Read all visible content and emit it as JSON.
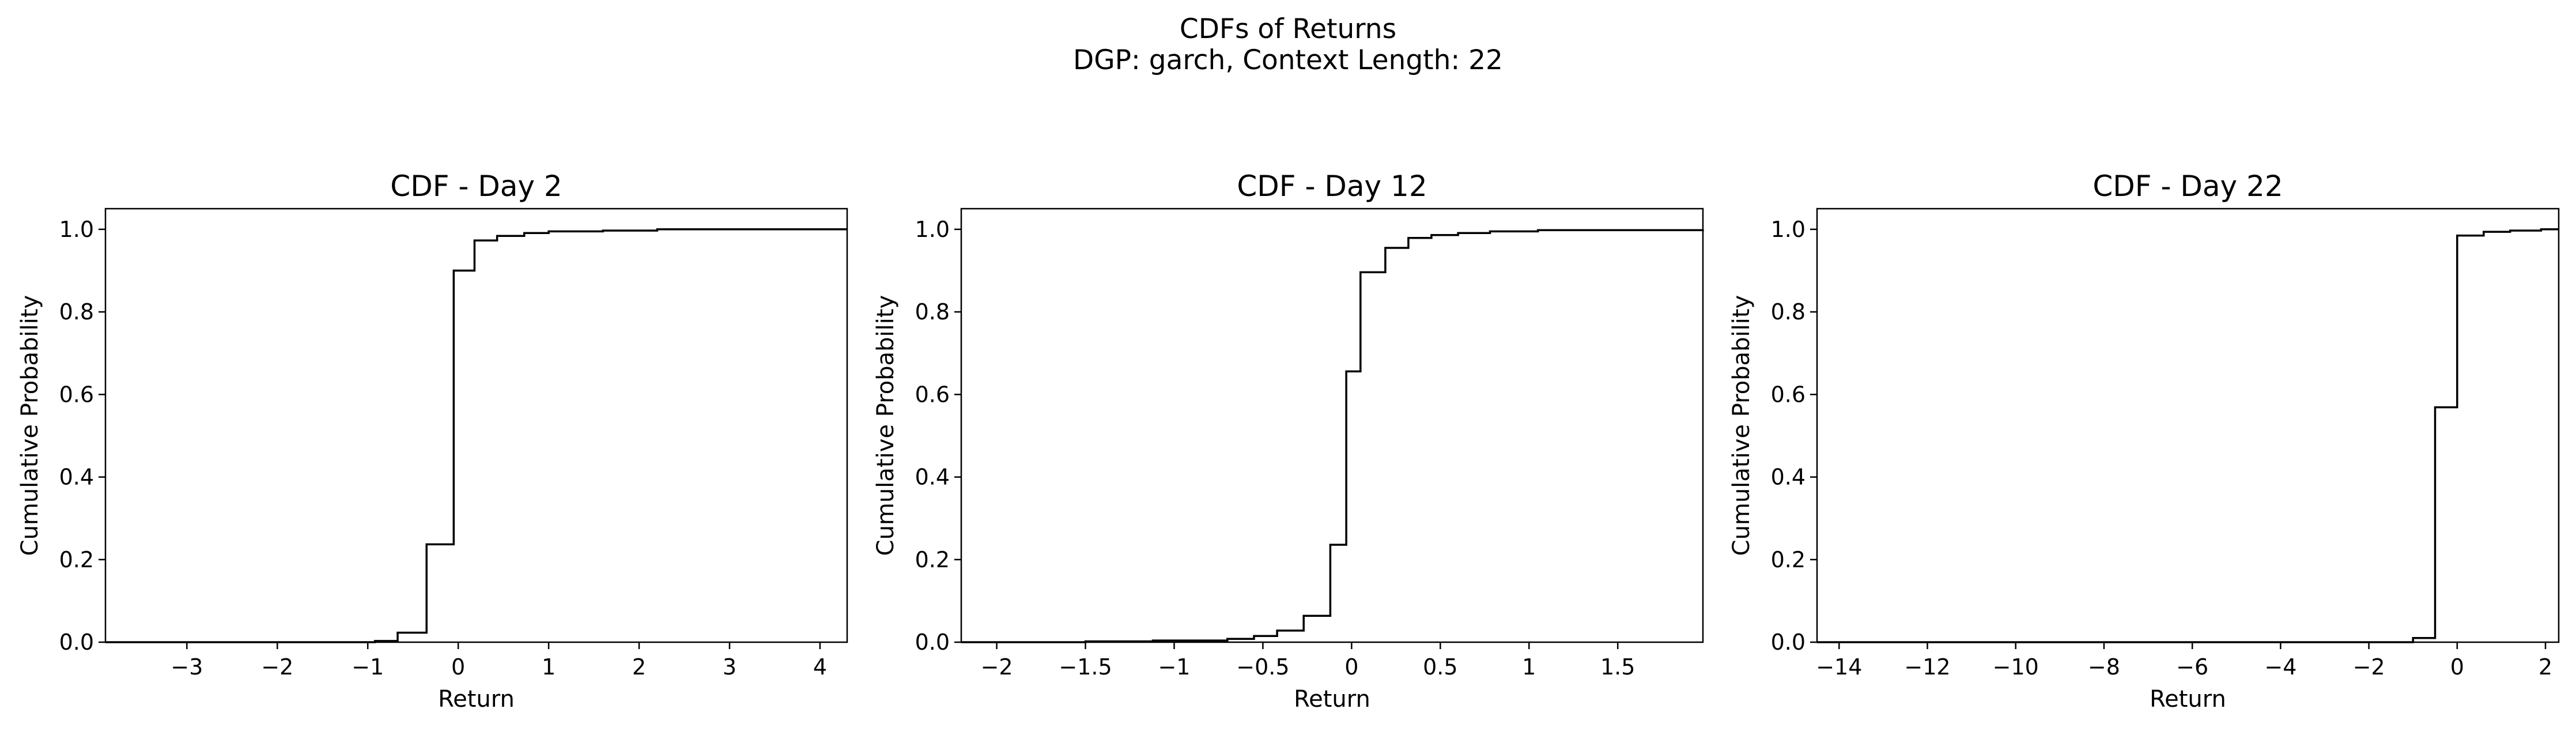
{
  "figure": {
    "title_line1": "CDFs of Returns",
    "title_line2": "DGP: garch, Context Length: 22"
  },
  "chart_data": [
    {
      "type": "line",
      "drawstyle": "steps-post",
      "title": "CDF - Day 2",
      "xlabel": "Return",
      "ylabel": "Cumulative Probability",
      "xlim": [
        -3.9,
        4.3
      ],
      "ylim": [
        0.0,
        1.05
      ],
      "xticks": [
        -3,
        -2,
        -1,
        0,
        1,
        2,
        3,
        4
      ],
      "yticks": [
        0.0,
        0.2,
        0.4,
        0.6,
        0.8,
        1.0
      ],
      "grid": false,
      "color": "#000000",
      "x": [
        -3.9,
        -0.92,
        -0.67,
        -0.35,
        -0.05,
        0.18,
        0.43,
        0.73,
        1.0,
        1.6,
        2.2,
        4.3
      ],
      "y": [
        0.0,
        0.003,
        0.023,
        0.237,
        0.9,
        0.973,
        0.984,
        0.991,
        0.995,
        0.997,
        1.0,
        1.0
      ]
    },
    {
      "type": "line",
      "drawstyle": "steps-post",
      "title": "CDF - Day 12",
      "xlabel": "Return",
      "ylabel": "Cumulative Probability",
      "xlim": [
        -2.2,
        1.98
      ],
      "ylim": [
        0.0,
        1.05
      ],
      "xticks": [
        -2.0,
        -1.5,
        -1.0,
        -0.5,
        0.0,
        0.5,
        1.0,
        1.5
      ],
      "yticks": [
        0.0,
        0.2,
        0.4,
        0.6,
        0.8,
        1.0
      ],
      "grid": false,
      "color": "#000000",
      "x": [
        -2.2,
        -1.5,
        -1.12,
        -0.7,
        -0.55,
        -0.42,
        -0.27,
        -0.12,
        -0.03,
        0.05,
        0.19,
        0.32,
        0.45,
        0.6,
        0.78,
        1.05,
        1.98
      ],
      "y": [
        0.0,
        0.002,
        0.004,
        0.008,
        0.015,
        0.028,
        0.064,
        0.236,
        0.656,
        0.896,
        0.955,
        0.979,
        0.986,
        0.991,
        0.995,
        0.998,
        0.999
      ]
    },
    {
      "type": "line",
      "drawstyle": "steps-post",
      "title": "CDF - Day 22",
      "xlabel": "Return",
      "ylabel": "Cumulative Probability",
      "xlim": [
        -14.5,
        2.3
      ],
      "ylim": [
        0.0,
        1.05
      ],
      "xticks": [
        -14,
        -12,
        -10,
        -8,
        -6,
        -4,
        -2,
        0,
        2
      ],
      "yticks": [
        0.0,
        0.2,
        0.4,
        0.6,
        0.8,
        1.0
      ],
      "grid": false,
      "color": "#000000",
      "x": [
        -14.5,
        -1.0,
        -0.5,
        0.0,
        0.6,
        1.2,
        1.9,
        2.3
      ],
      "y": [
        0.0,
        0.01,
        0.569,
        0.985,
        0.994,
        0.997,
        1.0,
        1.0
      ]
    }
  ]
}
